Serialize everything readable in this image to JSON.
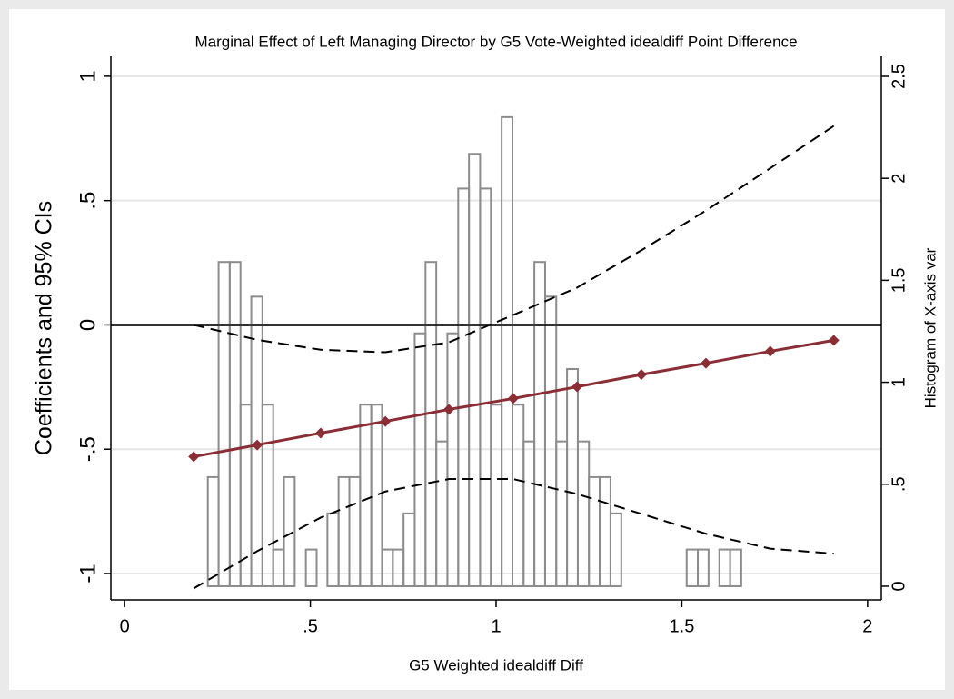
{
  "chart_data": {
    "type": "line",
    "title": "Marginal Effect of Left Managing Director by G5 Vote-Weighted idealdiff Point Difference",
    "xlabel": "G5 Weighted idealdiff Diff",
    "ylabel": "Coefficients and 95% CIs",
    "y2label": "Histogram of X-axis var",
    "x": [
      0.186,
      0.357,
      0.528,
      0.702,
      0.873,
      1.046,
      1.218,
      1.391,
      1.565,
      1.738,
      1.909
    ],
    "series": [
      {
        "color": "#8b2d34",
        "style": "solid",
        "marker": "diamond",
        "values": [
          -0.53,
          -0.483,
          -0.435,
          -0.388,
          -0.34,
          -0.296,
          -0.249,
          -0.2,
          -0.154,
          -0.106,
          -0.062
        ]
      },
      {
        "color": "#000000",
        "style": "dashed",
        "values": [
          0.0,
          -0.06,
          -0.1,
          -0.11,
          -0.07,
          0.04,
          0.15,
          0.3,
          0.46,
          0.63,
          0.8
        ]
      },
      {
        "color": "#000000",
        "style": "dashed",
        "values": [
          -1.06,
          -0.91,
          -0.775,
          -0.67,
          -0.62,
          -0.62,
          -0.68,
          -0.76,
          -0.84,
          -0.9,
          -0.92
        ]
      }
    ],
    "histogram": {
      "type": "histogram",
      "axis": "y2",
      "color": "#8c8c8c",
      "bins": [
        0.224,
        0.253,
        0.283,
        0.312,
        0.341,
        0.371,
        0.4,
        0.429,
        0.458,
        0.488,
        0.517,
        0.546,
        0.576,
        0.605,
        0.634,
        0.664,
        0.693,
        0.722,
        0.751,
        0.781,
        0.81,
        0.839,
        0.869,
        0.898,
        0.927,
        0.957,
        0.986,
        1.015,
        1.044,
        1.074,
        1.103,
        1.132,
        1.162,
        1.191,
        1.22,
        1.25,
        1.279,
        1.308,
        1.337,
        1.367,
        1.396,
        1.425,
        1.455,
        1.484,
        1.513,
        1.543,
        1.572,
        1.601,
        1.63,
        1.66
      ],
      "counts": [
        0.535,
        1.59,
        1.59,
        0.89,
        1.42,
        0.89,
        0.18,
        0.535,
        0,
        0.18,
        0,
        0.357,
        0.535,
        0.535,
        0.89,
        0.89,
        0.18,
        0.18,
        0.357,
        1.24,
        1.59,
        0.71,
        1.24,
        1.95,
        2.12,
        1.95,
        0.89,
        2.3,
        0.89,
        0.71,
        1.59,
        1.42,
        0.71,
        1.065,
        0.71,
        0.535,
        0.535,
        0.357,
        0,
        0,
        0,
        0,
        0,
        0,
        0.18,
        0.18,
        0,
        0.18,
        0.18
      ]
    },
    "xlim": [
      -0.037,
      2.037
    ],
    "ylim": [
      -1.106,
      1.08
    ],
    "y2lim": [
      -0.067,
      2.598
    ],
    "xticks": [
      0,
      {
        "value": 0.5,
        "label": ".5"
      },
      1,
      1.5,
      2
    ],
    "yticks": [
      -1,
      {
        "value": -0.5,
        "label": "-.5"
      },
      0,
      {
        "value": 0.5,
        "label": ".5"
      },
      1
    ],
    "y2ticks": [
      0,
      {
        "value": 0.5,
        "label": ".5"
      },
      1,
      1.5,
      2,
      2.5
    ],
    "grid": true,
    "yline": 0
  }
}
